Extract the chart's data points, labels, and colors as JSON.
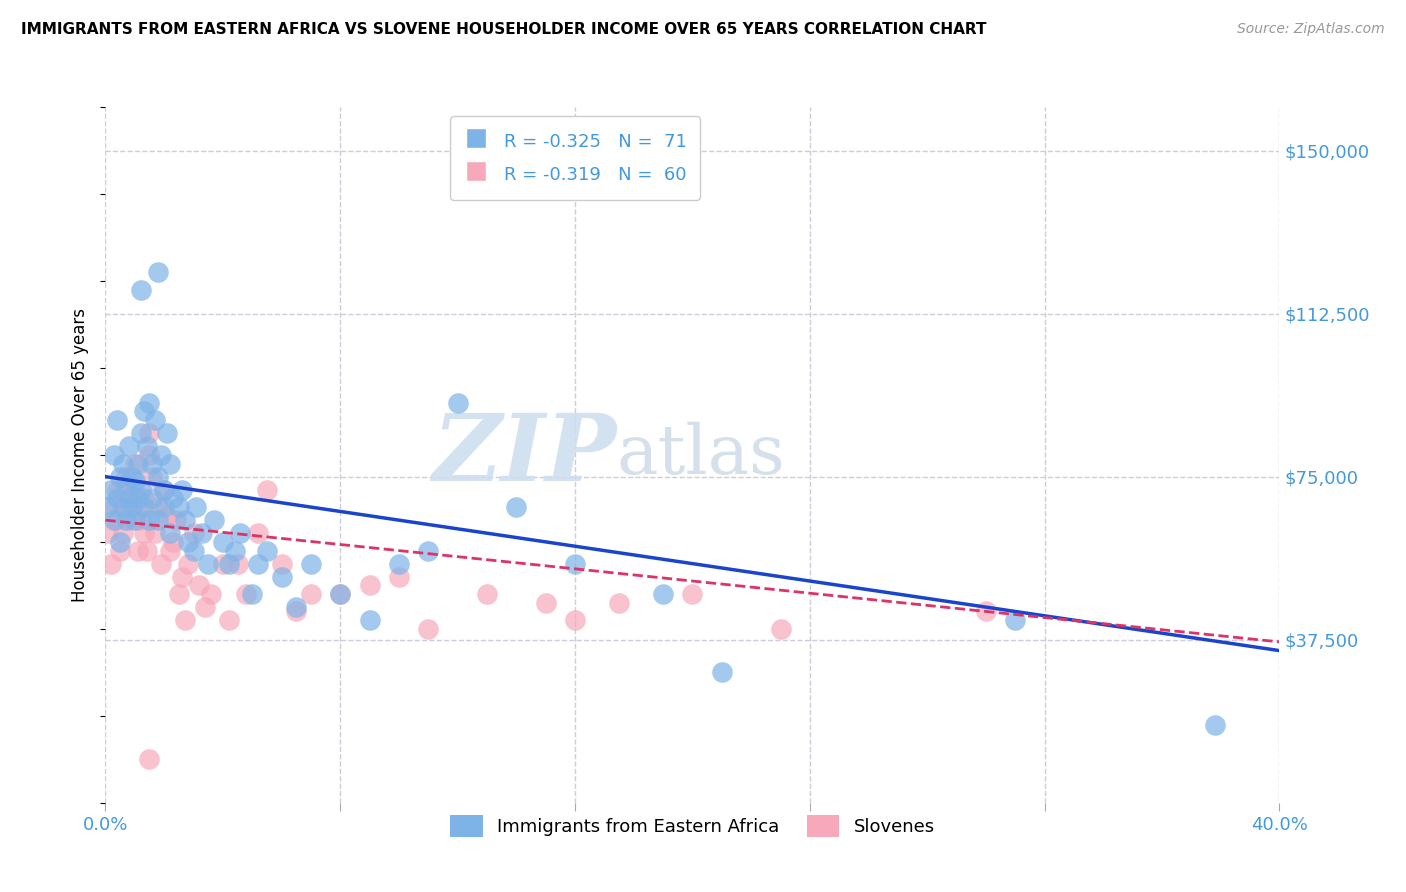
{
  "title": "IMMIGRANTS FROM EASTERN AFRICA VS SLOVENE HOUSEHOLDER INCOME OVER 65 YEARS CORRELATION CHART",
  "source": "Source: ZipAtlas.com",
  "ylabel": "Householder Income Over 65 years",
  "xmin": 0.0,
  "xmax": 0.4,
  "ymin": 0,
  "ymax": 160000,
  "x_ticks": [
    0.0,
    0.08,
    0.16,
    0.24,
    0.32,
    0.4
  ],
  "x_tick_labels": [
    "0.0%",
    "",
    "",
    "",
    "",
    "40.0%"
  ],
  "y_ticks": [
    37500,
    75000,
    112500,
    150000
  ],
  "y_tick_labels": [
    "$37,500",
    "$75,000",
    "$112,500",
    "$150,000"
  ],
  "legend1_R": "-0.325",
  "legend1_N": "71",
  "legend2_R": "-0.319",
  "legend2_N": "60",
  "blue_color": "#7EB3E8",
  "pink_color": "#F7A8BB",
  "blue_line_color": "#1A44CC",
  "pink_line_color": "#DD3366",
  "axis_color": "#4499DD",
  "background_color": "#FFFFFF",
  "grid_color": "#CCCCDD",
  "blue_line_x0": 0.0,
  "blue_line_y0": 75000,
  "blue_line_x1": 0.4,
  "blue_line_y1": 35000,
  "pink_line_x0": 0.0,
  "pink_line_y0": 65000,
  "pink_line_x1": 0.4,
  "pink_line_y1": 37000,
  "blue_x": [
    0.001,
    0.002,
    0.003,
    0.003,
    0.004,
    0.004,
    0.005,
    0.005,
    0.006,
    0.006,
    0.007,
    0.007,
    0.008,
    0.008,
    0.009,
    0.009,
    0.01,
    0.01,
    0.011,
    0.011,
    0.012,
    0.012,
    0.013,
    0.013,
    0.014,
    0.015,
    0.015,
    0.016,
    0.016,
    0.017,
    0.018,
    0.018,
    0.019,
    0.02,
    0.02,
    0.021,
    0.022,
    0.022,
    0.023,
    0.025,
    0.026,
    0.027,
    0.028,
    0.03,
    0.031,
    0.033,
    0.035,
    0.037,
    0.04,
    0.042,
    0.044,
    0.046,
    0.05,
    0.052,
    0.055,
    0.06,
    0.065,
    0.07,
    0.08,
    0.09,
    0.1,
    0.11,
    0.12,
    0.14,
    0.16,
    0.19,
    0.21,
    0.31,
    0.378,
    0.012,
    0.018
  ],
  "blue_y": [
    68000,
    72000,
    65000,
    80000,
    70000,
    88000,
    75000,
    60000,
    68000,
    78000,
    73000,
    65000,
    70000,
    82000,
    68000,
    75000,
    74000,
    65000,
    78000,
    70000,
    72000,
    85000,
    68000,
    90000,
    82000,
    65000,
    92000,
    78000,
    70000,
    88000,
    65000,
    75000,
    80000,
    68000,
    72000,
    85000,
    78000,
    62000,
    70000,
    68000,
    72000,
    65000,
    60000,
    58000,
    68000,
    62000,
    55000,
    65000,
    60000,
    55000,
    58000,
    62000,
    48000,
    55000,
    58000,
    52000,
    45000,
    55000,
    48000,
    42000,
    55000,
    58000,
    92000,
    68000,
    55000,
    48000,
    30000,
    42000,
    18000,
    118000,
    122000
  ],
  "pink_x": [
    0.001,
    0.002,
    0.003,
    0.004,
    0.004,
    0.005,
    0.006,
    0.006,
    0.007,
    0.008,
    0.008,
    0.009,
    0.01,
    0.01,
    0.011,
    0.012,
    0.012,
    0.013,
    0.013,
    0.014,
    0.015,
    0.015,
    0.016,
    0.017,
    0.018,
    0.019,
    0.02,
    0.021,
    0.022,
    0.023,
    0.024,
    0.025,
    0.026,
    0.027,
    0.028,
    0.03,
    0.032,
    0.034,
    0.036,
    0.04,
    0.042,
    0.045,
    0.048,
    0.052,
    0.055,
    0.06,
    0.065,
    0.07,
    0.08,
    0.09,
    0.1,
    0.11,
    0.13,
    0.15,
    0.16,
    0.175,
    0.2,
    0.23,
    0.3,
    0.015
  ],
  "pink_y": [
    62000,
    55000,
    68000,
    65000,
    72000,
    58000,
    70000,
    62000,
    75000,
    68000,
    73000,
    65000,
    78000,
    72000,
    58000,
    65000,
    68000,
    70000,
    62000,
    58000,
    85000,
    80000,
    75000,
    62000,
    68000,
    55000,
    72000,
    66000,
    58000,
    60000,
    65000,
    48000,
    52000,
    42000,
    55000,
    62000,
    50000,
    45000,
    48000,
    55000,
    42000,
    55000,
    48000,
    62000,
    72000,
    55000,
    44000,
    48000,
    48000,
    50000,
    52000,
    40000,
    48000,
    46000,
    42000,
    46000,
    48000,
    40000,
    44000,
    10000
  ]
}
